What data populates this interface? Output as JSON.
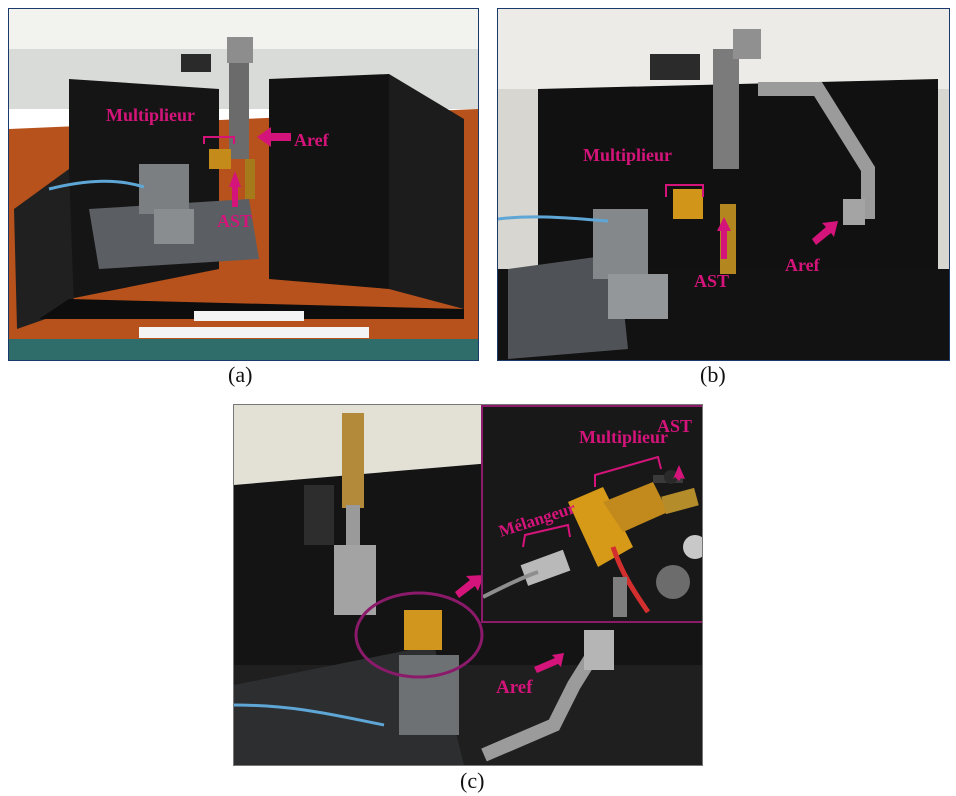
{
  "panels": [
    {
      "caption": "(a)",
      "labels": {
        "multiplier": "Multiplieur",
        "aref": "Aref",
        "ast": "AST"
      }
    },
    {
      "caption": "(b)",
      "labels": {
        "multiplier": "Multiplieur",
        "aref": "Aref",
        "ast": "AST"
      }
    },
    {
      "caption": "(c)",
      "labels": {
        "aref": "Aref"
      },
      "inset": {
        "multiplier": "Multiplieur",
        "ast": "AST",
        "mixer": "Mélangeur"
      }
    }
  ],
  "colors": {
    "annotation": "#d4147a",
    "frame": "#1b3a6b",
    "inset_frame": "#8b1a6b"
  }
}
